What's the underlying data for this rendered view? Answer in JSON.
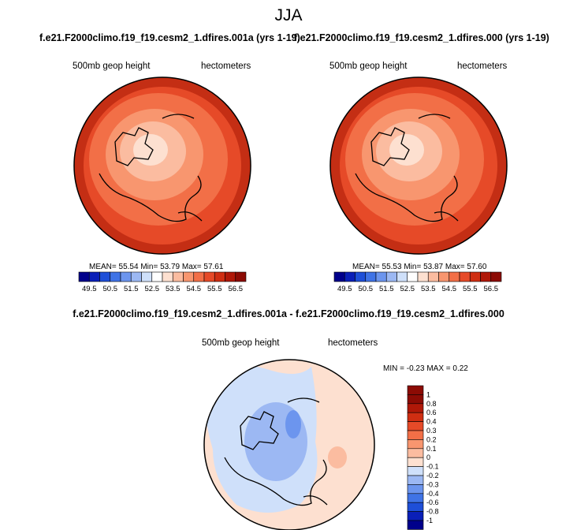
{
  "season": "JJA",
  "panels": [
    {
      "title": "f.e21.F2000climo.f19_f19.cesm2_1.dfires.001a (yrs 1-19)",
      "variable": "500mb geop height",
      "units": "hectometers",
      "stats": {
        "mean_label": "MEAN=",
        "mean": "55.54",
        "min_label": "Min=",
        "min": "53.79",
        "max_label": "Max=",
        "max": "57.61"
      }
    },
    {
      "title": "f.e21.F2000climo.f19_f19.cesm2_1.dfires.000 (yrs 1-19)",
      "variable": "500mb geop height",
      "units": "hectometers",
      "stats": {
        "mean_label": "MEAN=",
        "mean": "55.53",
        "min_label": "Min=",
        "min": "53.87",
        "max_label": "Max=",
        "max": "57.60"
      }
    }
  ],
  "horizontal_colorbar": {
    "labels": [
      "49.5",
      "50.5",
      "51.5",
      "52.5",
      "53.5",
      "54.5",
      "55.5",
      "56.5"
    ],
    "colors": [
      "#00008b",
      "#0a1fb8",
      "#1e4fd8",
      "#3f73e6",
      "#6c95ee",
      "#9cb8f3",
      "#cfe0fa",
      "#ffffff",
      "#fde0d0",
      "#fbbca0",
      "#f8966f",
      "#f26f47",
      "#e64a28",
      "#cf2e12",
      "#b01808",
      "#8c0b04"
    ]
  },
  "difference_panel": {
    "title": "f.e21.F2000climo.f19_f19.cesm2_1.dfires.001a - f.e21.F2000climo.f19_f19.cesm2_1.dfires.000",
    "variable": "500mb geop height",
    "units": "hectometers",
    "min_label": "MIN =",
    "min": "-0.23",
    "max_label": "MAX =",
    "max": "0.22"
  },
  "vertical_colorbar": {
    "labels": [
      "1",
      "0.8",
      "0.6",
      "0.4",
      "0.3",
      "0.2",
      "0.1",
      "0",
      "-0.1",
      "-0.2",
      "-0.3",
      "-0.4",
      "-0.6",
      "-0.8",
      "-1"
    ],
    "colors": [
      "#8c0b04",
      "#b01808",
      "#cf2e12",
      "#e64a28",
      "#f26f47",
      "#f8966f",
      "#fbbca0",
      "#fde0d0",
      "#cfe0fa",
      "#9cb8f3",
      "#6c95ee",
      "#3f73e6",
      "#1e4fd8",
      "#0a1fb8",
      "#00008b"
    ]
  },
  "colors": {
    "outer_ring": "#c42e14",
    "ring2": "#e64a28",
    "ring3": "#f26f47",
    "ring4": "#f8966f",
    "ring5": "#fbbca0",
    "center": "#fde0d0",
    "diff_pos": "#fde0d0",
    "diff_neg": "#cfe0fa",
    "diff_neg2": "#9cb8f3",
    "diff_pos2": "#fbbca0"
  }
}
